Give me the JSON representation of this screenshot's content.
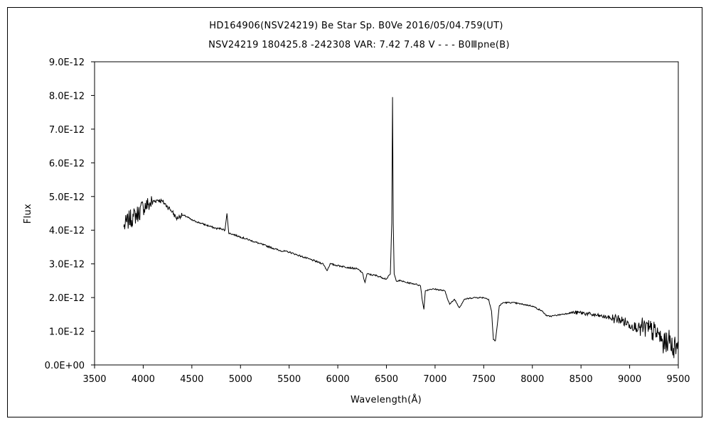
{
  "chart_data": {
    "type": "line",
    "title": "HD164906(NSV24219)   Be Star   Sp. B0Ve   2016/05/04.759(UT)",
    "subtitle": "NSV24219 180425.8 -242308 VAR: 7.42 7.48 V - - - B0Ⅲpne(B)",
    "xlabel": "Wavelength(Å)",
    "ylabel": "Flux",
    "xlim": [
      3500,
      9500
    ],
    "ylim": [
      0,
      9e-12
    ],
    "x_ticks": [
      "3500",
      "4000",
      "4500",
      "5000",
      "5500",
      "6000",
      "6500",
      "7000",
      "7500",
      "8000",
      "8500",
      "9000",
      "9500"
    ],
    "y_ticks": [
      "0.0E+00",
      "1.0E-12",
      "2.0E-12",
      "3.0E-12",
      "4.0E-12",
      "5.0E-12",
      "6.0E-12",
      "7.0E-12",
      "8.0E-12",
      "9.0E-12"
    ],
    "grid": false,
    "legend": "none",
    "line_color": "#000000",
    "series": [
      {
        "x": [
          3800,
          3850,
          3900,
          3950,
          4000,
          4050,
          4100,
          4150,
          4200,
          4250,
          4300,
          4340,
          4400,
          4450,
          4500,
          4550,
          4600,
          4650,
          4700,
          4750,
          4800,
          4840,
          4861,
          4880,
          4900,
          4950,
          5000,
          5100,
          5200,
          5300,
          5400,
          5500,
          5600,
          5700,
          5800,
          5850,
          5890,
          5920,
          6000,
          6100,
          6200,
          6250,
          6280,
          6300,
          6400,
          6450,
          6500,
          6540,
          6555,
          6563,
          6570,
          6580,
          6600,
          6650,
          6700,
          6800,
          6850,
          6870,
          6885,
          6900,
          6950,
          7000,
          7100,
          7150,
          7200,
          7250,
          7300,
          7400,
          7500,
          7550,
          7580,
          7600,
          7620,
          7640,
          7660,
          7700,
          7800,
          7900,
          8000,
          8100,
          8150,
          8200,
          8300,
          8400,
          8500,
          8600,
          8700,
          8800,
          8900,
          9000,
          9100,
          9200,
          9300,
          9350,
          9400,
          9450,
          9500
        ],
        "y": [
          4.1e-12,
          4.3e-12,
          4.4e-12,
          4.5e-12,
          4.7e-12,
          4.75e-12,
          4.85e-12,
          4.9e-12,
          4.85e-12,
          4.7e-12,
          4.55e-12,
          4.35e-12,
          4.45e-12,
          4.4e-12,
          4.3e-12,
          4.25e-12,
          4.2e-12,
          4.15e-12,
          4.1e-12,
          4.05e-12,
          4.05e-12,
          4e-12,
          4.5e-12,
          3.9e-12,
          3.9e-12,
          3.85e-12,
          3.8e-12,
          3.7e-12,
          3.6e-12,
          3.5e-12,
          3.4e-12,
          3.35e-12,
          3.25e-12,
          3.15e-12,
          3.05e-12,
          3e-12,
          2.8e-12,
          3e-12,
          2.95e-12,
          2.9e-12,
          2.85e-12,
          2.75e-12,
          2.45e-12,
          2.7e-12,
          2.65e-12,
          2.6e-12,
          2.55e-12,
          2.7e-12,
          4.2e-12,
          7.95e-12,
          4.2e-12,
          2.7e-12,
          2.5e-12,
          2.5e-12,
          2.45e-12,
          2.4e-12,
          2.35e-12,
          1.9e-12,
          1.65e-12,
          2.2e-12,
          2.25e-12,
          2.25e-12,
          2.2e-12,
          1.8e-12,
          1.95e-12,
          1.7e-12,
          1.95e-12,
          2e-12,
          2e-12,
          1.95e-12,
          1.6e-12,
          7.5e-13,
          7.2e-13,
          1.2e-12,
          1.75e-12,
          1.85e-12,
          1.85e-12,
          1.8e-12,
          1.75e-12,
          1.6e-12,
          1.45e-12,
          1.45e-12,
          1.5e-12,
          1.55e-12,
          1.55e-12,
          1.5e-12,
          1.45e-12,
          1.4e-12,
          1.35e-12,
          1.2e-12,
          1.1e-12,
          1.05e-12,
          9e-13,
          6e-13,
          7.5e-13,
          5e-13,
          7e-13
        ]
      }
    ]
  }
}
